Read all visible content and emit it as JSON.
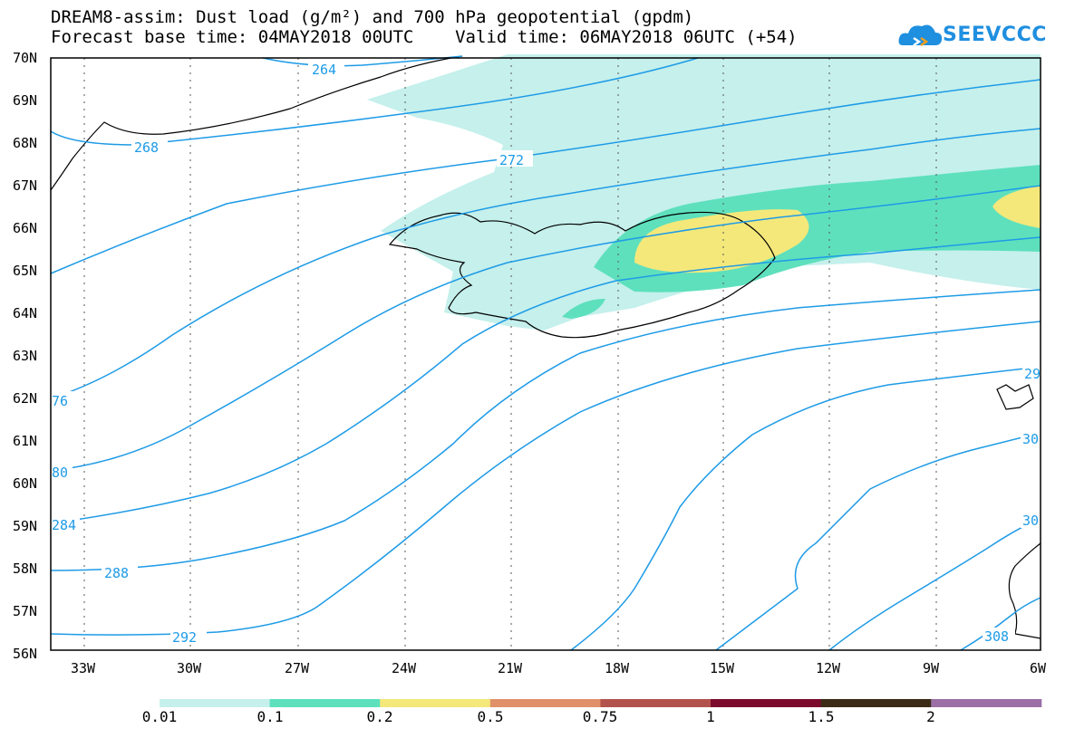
{
  "header": {
    "title_line1": "DREAM8-assim: Dust load (g/m²) and 700 hPa geopotential (gpdm)",
    "title_line2": "Forecast base time: 04MAY2018 00UTC    Valid time: 06MAY2018 06UTC (+54)"
  },
  "logo": {
    "text": "SEEVCCC",
    "icon": "cloud-logo-icon"
  },
  "map": {
    "lat_labels": [
      "70N",
      "69N",
      "68N",
      "67N",
      "66N",
      "65N",
      "64N",
      "63N",
      "62N",
      "61N",
      "60N",
      "59N",
      "58N",
      "57N",
      "56N"
    ],
    "lon_labels": [
      "33W",
      "30W",
      "27W",
      "24W",
      "21W",
      "18W",
      "15W",
      "12W",
      "9W",
      "6W"
    ],
    "contour_color": "#1e9be6",
    "contour_labels": [
      "264",
      "268",
      "272",
      "76",
      "80",
      "284",
      "288",
      "292",
      "29",
      "30",
      "30",
      "308"
    ]
  },
  "legend": {
    "colors": [
      "#c5f0ec",
      "#5ee0bd",
      "#f4e87a",
      "#e0916a",
      "#b3524c",
      "#7b0a2c",
      "#3c2b17",
      "#9b6fa6"
    ],
    "labels": [
      "0.01",
      "0.1",
      "0.2",
      "0.5",
      "0.75",
      "1",
      "1.5",
      "2"
    ]
  }
}
